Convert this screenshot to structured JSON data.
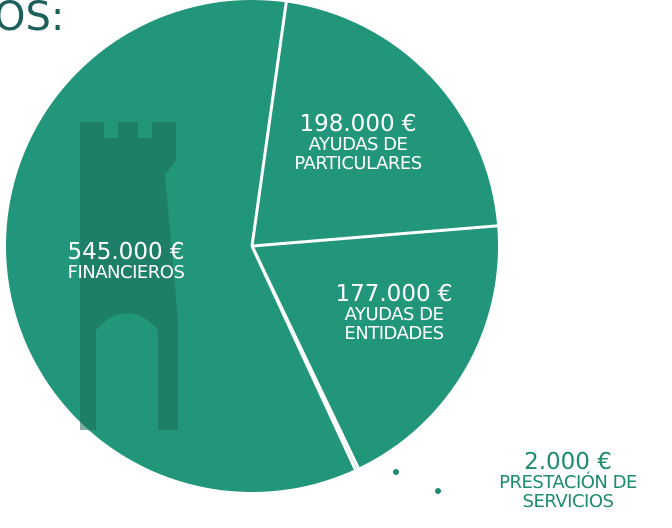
{
  "chart_data": {
    "type": "pie",
    "title": "OS:",
    "categories": [
      "AYUDAS DE PARTICULARES",
      "AYUDAS DE ENTIDADES",
      "PRESTACIÓN DE SERVICIOS",
      "FINANCIEROS"
    ],
    "values": [
      198000,
      177000,
      2000,
      545000
    ],
    "value_labels": [
      "198.000 €",
      "177.000 €",
      "2.000 €",
      "545.000 €"
    ],
    "color": "#21967a"
  }
}
